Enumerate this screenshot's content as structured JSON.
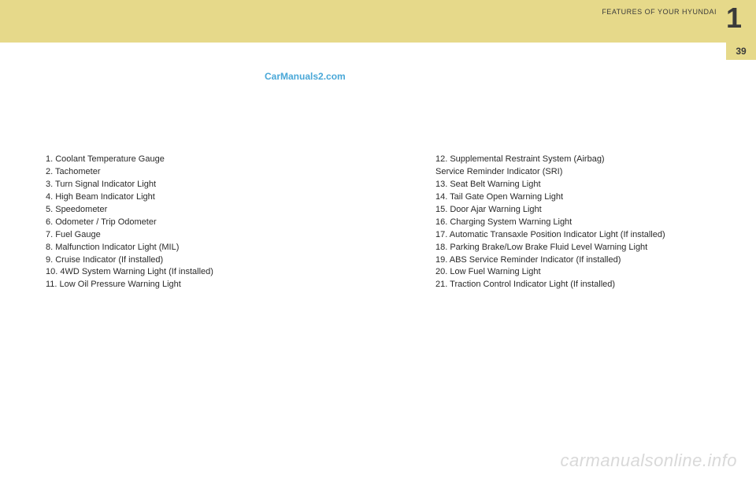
{
  "header": {
    "section_title": "FEATURES OF YOUR HYUNDAI",
    "chapter_number": "1",
    "page_number": "39"
  },
  "watermarks": {
    "top": "CarManuals2.com",
    "bottom": "carmanualsonline.info"
  },
  "left_list": [
    "1.  Coolant Temperature Gauge",
    "2.  Tachometer",
    "3.  Turn Signal Indicator Light",
    "4.  High Beam Indicator Light",
    "5.  Speedometer",
    "6.  Odometer / Trip Odometer",
    "7.  Fuel Gauge",
    "8.  Malfunction Indicator Light (MIL)",
    "9.  Cruise Indicator (If installed)",
    "10. 4WD System Warning Light (If installed)",
    "11. Low Oil Pressure Warning Light"
  ],
  "right_list": [
    "12. Supplemental Restraint System (Airbag)",
    "      Service Reminder Indicator (SRI)",
    "13. Seat Belt Warning Light",
    "14. Tail Gate Open Warning Light",
    "15. Door Ajar Warning Light",
    "16. Charging System Warning Light",
    "17. Automatic Transaxle Position Indicator Light (If installed)",
    "18. Parking Brake/Low Brake Fluid Level Warning Light",
    "19. ABS Service Reminder Indicator (If installed)",
    "20. Low Fuel Warning Light",
    "21. Traction Control Indicator Light (If installed)"
  ],
  "colors": {
    "band_bg": "#e6d98a",
    "text": "#2a2a2a",
    "header_text": "#3a3a3a",
    "watermark_top": "#4aa8d8",
    "watermark_bottom": "#d9d9d9",
    "page_bg": "#ffffff"
  }
}
